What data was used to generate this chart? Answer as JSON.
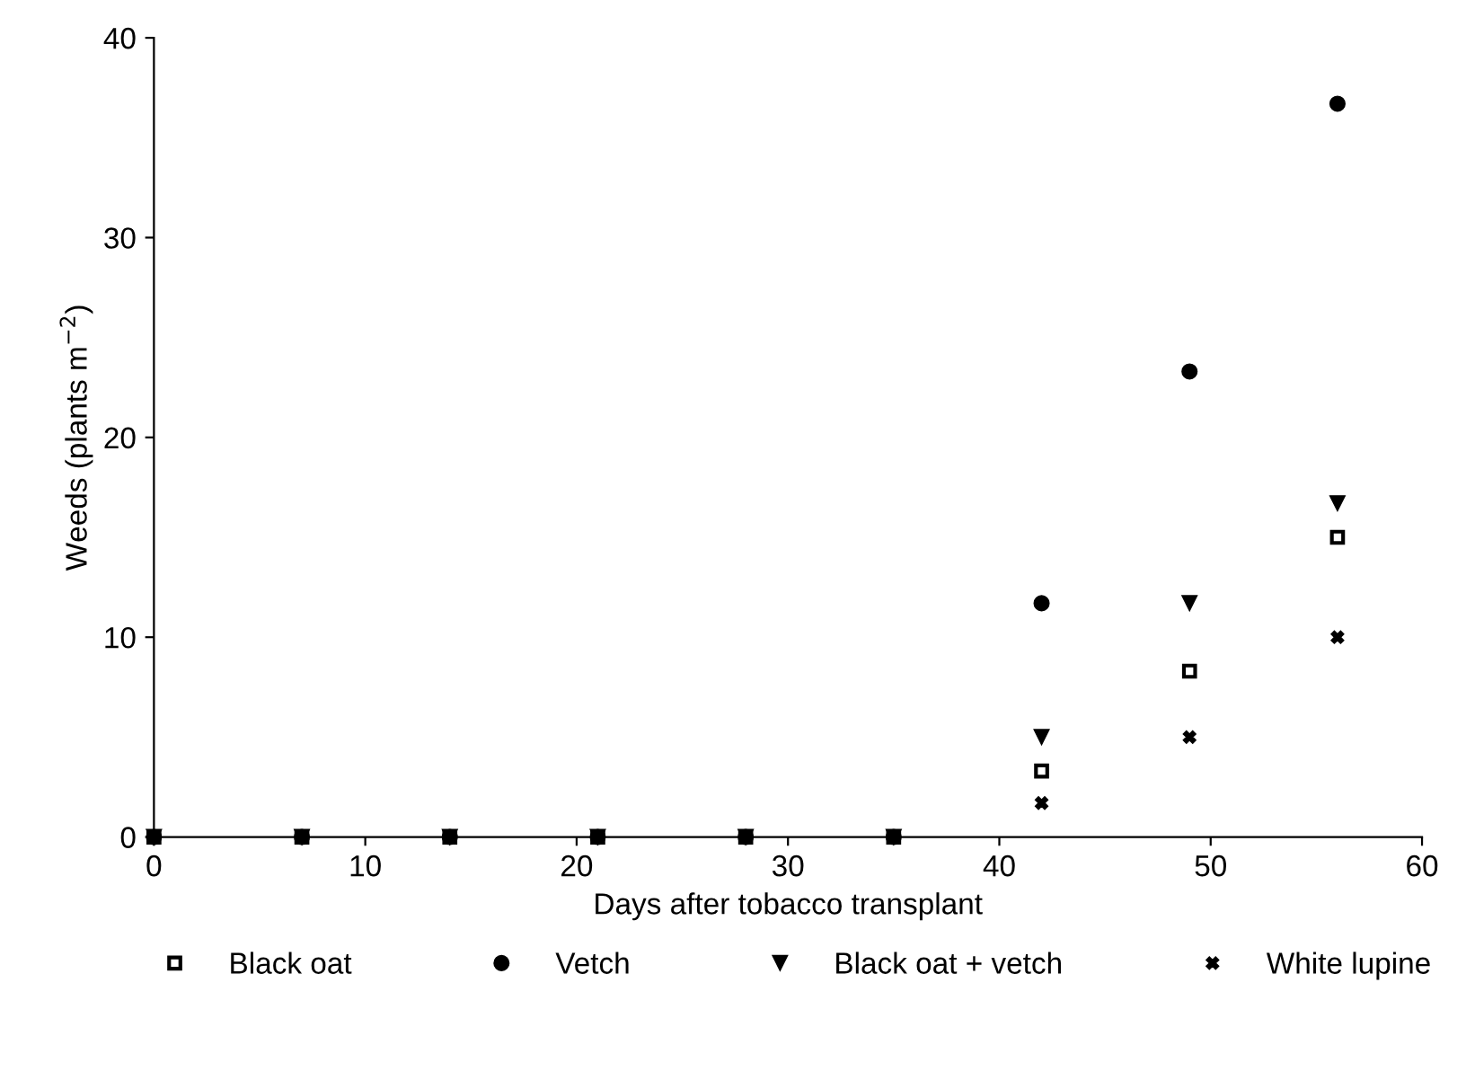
{
  "chart_data": {
    "type": "scatter",
    "xlabel": "Days after tobacco transplant",
    "ylabel": "Weeds (plants m$^{−2}$)",
    "x": [
      0,
      7,
      14,
      21,
      28,
      35,
      42,
      49,
      56
    ],
    "series": [
      {
        "name": "Black oat",
        "color": "#000000",
        "marker": "square",
        "values": [
          0,
          0,
          0,
          0,
          0,
          0,
          3.3,
          8.3,
          15
        ]
      },
      {
        "name": "Vetch",
        "color": "#000000",
        "marker": "circle",
        "values": [
          0,
          0,
          0,
          0,
          0,
          0,
          11.7,
          23.3,
          36.7
        ]
      },
      {
        "name": "Black oat + vetch",
        "color": "#000000",
        "marker": "triangle",
        "values": [
          0,
          0,
          0,
          0,
          0,
          0,
          5,
          11.7,
          16.7
        ]
      },
      {
        "name": "White lupine",
        "color": "#000000",
        "marker": "cross",
        "values": [
          null,
          null,
          null,
          null,
          null,
          null,
          1.7,
          5,
          10
        ]
      }
    ],
    "xlim": [
      0,
      60
    ],
    "ylim": [
      0,
      40
    ],
    "xticks": [
      0,
      10,
      20,
      30,
      40,
      50,
      60
    ],
    "yticks": [
      0,
      10,
      20,
      30,
      40
    ],
    "grid": false,
    "legend": "bottom"
  }
}
